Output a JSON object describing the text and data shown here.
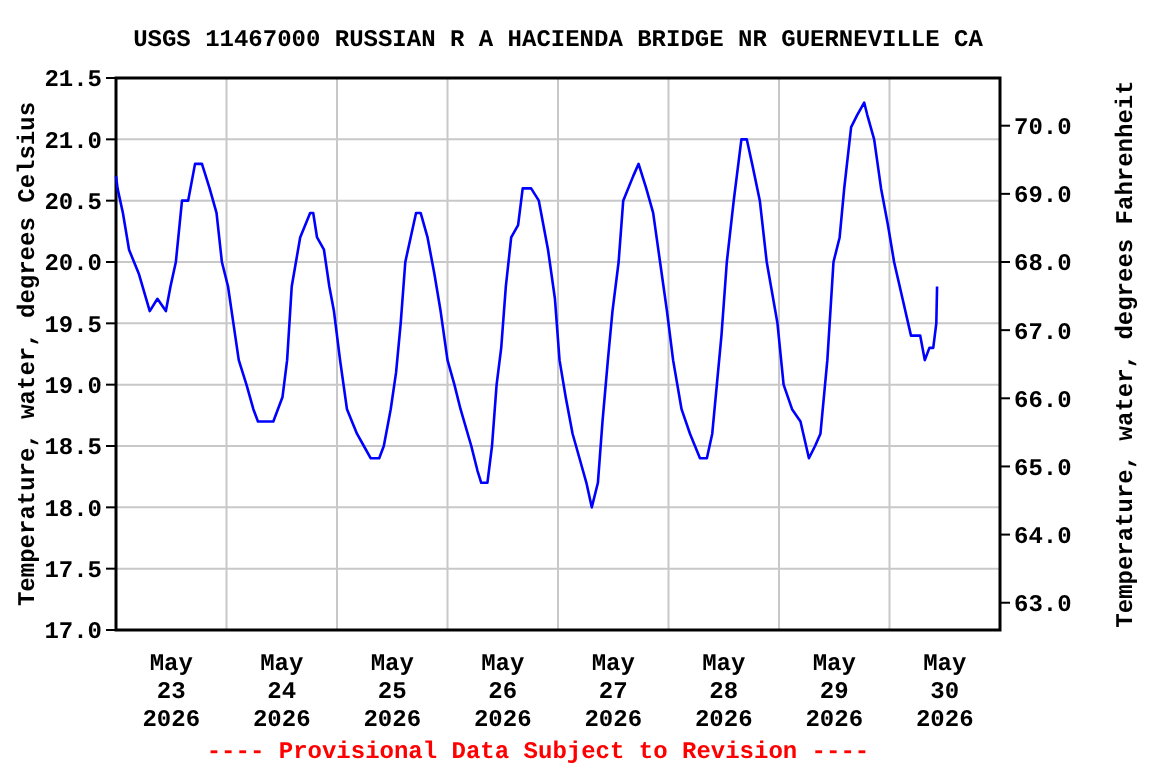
{
  "chart_data": {
    "type": "line",
    "title": "USGS 11467000 RUSSIAN R A HACIENDA BRIDGE NR GUERNEVILLE CA",
    "ylabel": "Temperature, water, degrees Celsius",
    "y2label": "Temperature, water, degrees Fahrenheit",
    "annotations": [
      "---- Provisional Data Subject to Revision ----"
    ],
    "xlim": [
      "2026-05-23T00:00",
      "2026-05-31T00:00"
    ],
    "xticks": [
      {
        "value": "2026-05-23T00:00",
        "label": null
      },
      {
        "value": "2026-05-23T12:00",
        "label": "May 23 2026"
      },
      {
        "value": "2026-05-24T00:00",
        "label": null
      },
      {
        "value": "2026-05-24T12:00",
        "label": "May 24 2026"
      },
      {
        "value": "2026-05-25T00:00",
        "label": null
      },
      {
        "value": "2026-05-25T12:00",
        "label": "May 25 2026"
      },
      {
        "value": "2026-05-26T00:00",
        "label": null
      },
      {
        "value": "2026-05-26T12:00",
        "label": "May 26 2026"
      },
      {
        "value": "2026-05-27T00:00",
        "label": null
      },
      {
        "value": "2026-05-27T12:00",
        "label": "May 27 2026"
      },
      {
        "value": "2026-05-28T00:00",
        "label": null
      },
      {
        "value": "2026-05-28T12:00",
        "label": "May 28 2026"
      },
      {
        "value": "2026-05-29T00:00",
        "label": null
      },
      {
        "value": "2026-05-29T12:00",
        "label": "May 29 2026"
      },
      {
        "value": "2026-05-30T00:00",
        "label": null
      },
      {
        "value": "2026-05-30T12:00",
        "label": "May 30 2026"
      },
      {
        "value": "2026-05-31T00:00",
        "label": null
      }
    ],
    "ylim": [
      17.0,
      21.5
    ],
    "yticks": [
      {
        "value": 17,
        "label": "17.0"
      },
      {
        "value": 17.5,
        "label": "17.5"
      },
      {
        "value": 18,
        "label": "18.0"
      },
      {
        "value": 18.5,
        "label": "18.5"
      },
      {
        "value": 19,
        "label": "19.0"
      },
      {
        "value": 19.5,
        "label": "19.5"
      },
      {
        "value": 20,
        "label": "20.0"
      },
      {
        "value": 20.5,
        "label": "20.5"
      },
      {
        "value": 21,
        "label": "21.0"
      },
      {
        "value": 21.5,
        "label": "21.5"
      }
    ],
    "y2lim": [
      62.6,
      70.7
    ],
    "y2ticks": [
      {
        "value": 63,
        "label": "63.0"
      },
      {
        "value": 64,
        "label": "64.0"
      },
      {
        "value": 65,
        "label": "65.0"
      },
      {
        "value": 66,
        "label": "66.0"
      },
      {
        "value": 67,
        "label": "67.0"
      },
      {
        "value": 68,
        "label": "68.0"
      },
      {
        "value": 69,
        "label": "69.0"
      },
      {
        "value": 70,
        "label": "70.0"
      }
    ],
    "grid": true,
    "marker": "none",
    "line_style": "solid",
    "series": [
      {
        "color": "#0000ff",
        "x": [
          "2026-05-23T00:00",
          "2026-05-23T00:20",
          "2026-05-23T01:30",
          "2026-05-23T02:50",
          "2026-05-23T05:00",
          "2026-05-23T07:20",
          "2026-05-23T09:00",
          "2026-05-23T10:50",
          "2026-05-23T11:50",
          "2026-05-23T13:00",
          "2026-05-23T14:20",
          "2026-05-23T15:40",
          "2026-05-23T17:10",
          "2026-05-23T18:40",
          "2026-05-23T20:20",
          "2026-05-23T21:50",
          "2026-05-23T23:00",
          "2026-05-24T00:20",
          "2026-05-24T01:30",
          "2026-05-24T02:40",
          "2026-05-24T04:20",
          "2026-05-24T05:50",
          "2026-05-24T06:50",
          "2026-05-24T10:10",
          "2026-05-24T12:10",
          "2026-05-24T13:10",
          "2026-05-24T14:10",
          "2026-05-24T16:00",
          "2026-05-24T18:10",
          "2026-05-24T18:50",
          "2026-05-24T19:40",
          "2026-05-24T21:10",
          "2026-05-24T22:20",
          "2026-05-24T23:20",
          "2026-05-25T00:40",
          "2026-05-25T02:10",
          "2026-05-25T04:20",
          "2026-05-25T05:50",
          "2026-05-25T07:20",
          "2026-05-25T09:10",
          "2026-05-25T10:10",
          "2026-05-25T11:40",
          "2026-05-25T12:50",
          "2026-05-25T13:50",
          "2026-05-25T14:50",
          "2026-05-25T16:00",
          "2026-05-25T17:10",
          "2026-05-25T18:10",
          "2026-05-25T19:40",
          "2026-05-25T21:10",
          "2026-05-25T22:30",
          "2026-05-26T00:00",
          "2026-05-26T01:30",
          "2026-05-26T02:50",
          "2026-05-26T05:10",
          "2026-05-26T06:30",
          "2026-05-26T07:20",
          "2026-05-26T08:40",
          "2026-05-26T09:40",
          "2026-05-26T10:40",
          "2026-05-26T11:40",
          "2026-05-26T12:40",
          "2026-05-26T13:50",
          "2026-05-26T15:20",
          "2026-05-26T16:20",
          "2026-05-26T18:10",
          "2026-05-26T19:50",
          "2026-05-26T21:50",
          "2026-05-26T23:20",
          "2026-05-27T00:20",
          "2026-05-27T01:40",
          "2026-05-27T03:10",
          "2026-05-27T04:40",
          "2026-05-27T06:10",
          "2026-05-27T07:20",
          "2026-05-27T08:40",
          "2026-05-27T09:40",
          "2026-05-27T10:50",
          "2026-05-27T11:50",
          "2026-05-27T13:10",
          "2026-05-27T14:10",
          "2026-05-27T16:20",
          "2026-05-27T17:30",
          "2026-05-27T19:10",
          "2026-05-27T20:40",
          "2026-05-27T22:10",
          "2026-05-27T23:40",
          "2026-05-28T01:00",
          "2026-05-28T02:50",
          "2026-05-28T04:40",
          "2026-05-28T06:50",
          "2026-05-28T08:20",
          "2026-05-28T09:30",
          "2026-05-28T10:30",
          "2026-05-28T11:30",
          "2026-05-28T12:40",
          "2026-05-28T14:10",
          "2026-05-28T15:50",
          "2026-05-28T17:00",
          "2026-05-28T18:10",
          "2026-05-28T19:50",
          "2026-05-28T21:20",
          "2026-05-28T23:40",
          "2026-05-29T01:00",
          "2026-05-29T02:50",
          "2026-05-29T04:40",
          "2026-05-29T06:30",
          "2026-05-29T07:50",
          "2026-05-29T09:00",
          "2026-05-29T10:30",
          "2026-05-29T11:50",
          "2026-05-29T13:10",
          "2026-05-29T14:10",
          "2026-05-29T15:40",
          "2026-05-29T17:00",
          "2026-05-29T18:30",
          "2026-05-29T19:10",
          "2026-05-29T20:40",
          "2026-05-29T22:10",
          "2026-05-29T23:40",
          "2026-05-30T01:00",
          "2026-05-30T02:50",
          "2026-05-30T04:40",
          "2026-05-30T06:40",
          "2026-05-30T07:40",
          "2026-05-30T08:40",
          "2026-05-30T09:30",
          "2026-05-30T10:10",
          "2026-05-30T10:20"
        ],
        "values": [
          20.7,
          20.6,
          20.4,
          20.1,
          19.9,
          19.6,
          19.7,
          19.6,
          19.8,
          20.0,
          20.5,
          20.5,
          20.8,
          20.8,
          20.6,
          20.4,
          20.0,
          19.8,
          19.5,
          19.2,
          19.0,
          18.8,
          18.7,
          18.7,
          18.9,
          19.2,
          19.8,
          20.2,
          20.4,
          20.4,
          20.2,
          20.1,
          19.8,
          19.6,
          19.2,
          18.8,
          18.6,
          18.5,
          18.4,
          18.4,
          18.5,
          18.8,
          19.1,
          19.5,
          20.0,
          20.2,
          20.4,
          20.4,
          20.2,
          19.9,
          19.6,
          19.2,
          19.0,
          18.8,
          18.5,
          18.3,
          18.2,
          18.2,
          18.5,
          19.0,
          19.3,
          19.8,
          20.2,
          20.3,
          20.6,
          20.6,
          20.5,
          20.1,
          19.7,
          19.2,
          18.9,
          18.6,
          18.4,
          18.2,
          18.0,
          18.2,
          18.7,
          19.2,
          19.6,
          20.0,
          20.5,
          20.7,
          20.8,
          20.6,
          20.4,
          20.0,
          19.6,
          19.2,
          18.8,
          18.6,
          18.4,
          18.4,
          18.6,
          19.0,
          19.4,
          20.0,
          20.5,
          21.0,
          21.0,
          20.8,
          20.5,
          20.0,
          19.5,
          19.0,
          18.8,
          18.7,
          18.4,
          18.5,
          18.6,
          19.2,
          20.0,
          20.2,
          20.6,
          21.1,
          21.2,
          21.3,
          21.2,
          21.0,
          20.6,
          20.3,
          20.0,
          19.7,
          19.4,
          19.4,
          19.2,
          19.3,
          19.3,
          19.5,
          19.8
        ]
      }
    ]
  }
}
